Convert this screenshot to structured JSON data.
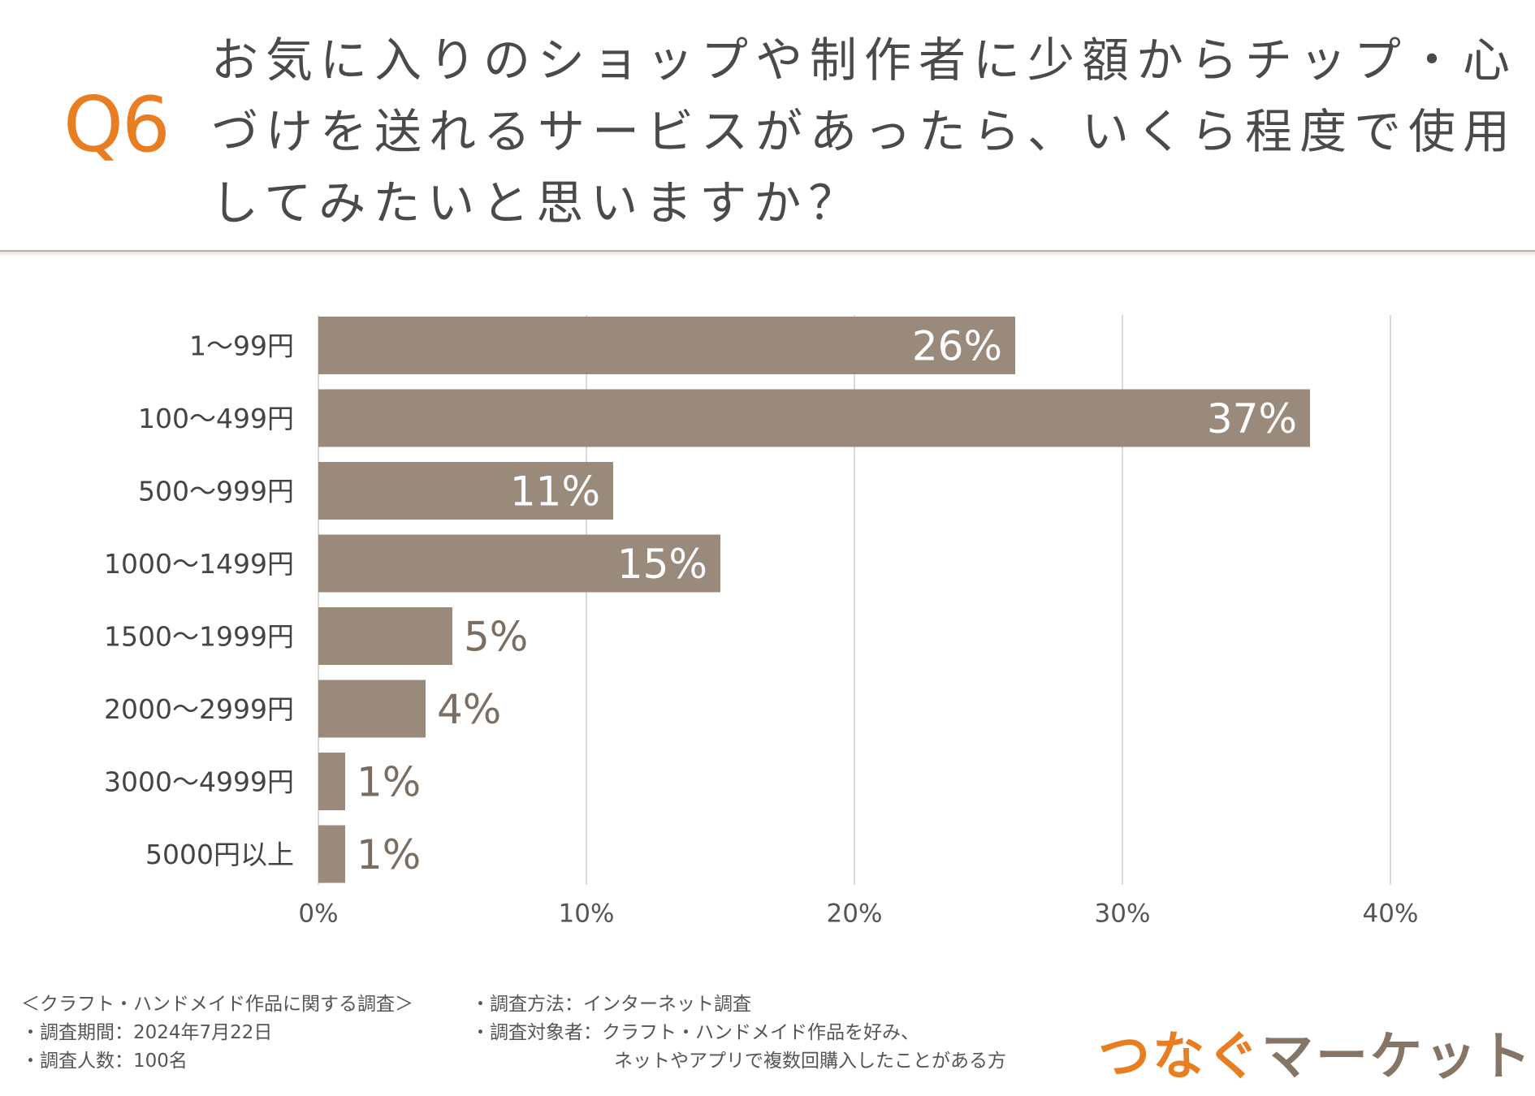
{
  "header": {
    "question_number": "Q6",
    "question_lines": [
      "お気に入りのショップや制作者に少額からチップ・心",
      "づけを送れるサービスがあったら、いくら程度で使用",
      "してみたいと思いますか？"
    ]
  },
  "colors": {
    "accent": "#e87d22",
    "bar": "#9a8a7b",
    "value_outside": "#7b6d61",
    "grid": "#d9d9d9"
  },
  "chart_data": {
    "type": "bar",
    "orientation": "horizontal",
    "categories": [
      "1～99円",
      "100～499円",
      "500～999円",
      "1000～1499円",
      "1500～1999円",
      "2000～2999円",
      "3000～4999円",
      "5000円以上"
    ],
    "values": [
      26,
      37,
      11,
      15,
      5,
      4,
      1,
      1
    ],
    "value_labels": [
      "26%",
      "37%",
      "11%",
      "15%",
      "5%",
      "4%",
      "1%",
      "1%"
    ],
    "xlim": [
      0,
      40
    ],
    "xticks": [
      0,
      10,
      20,
      30,
      40
    ],
    "xtick_labels": [
      "0%",
      "10%",
      "20%",
      "30%",
      "40%"
    ],
    "grid": true,
    "title": "",
    "xlabel": "",
    "ylabel": ""
  },
  "footer": {
    "survey_notes_left": [
      "＜クラフト・ハンドメイド作品に関する調査＞",
      "・調査期間：2024年7月22日",
      "・調査人数：100名"
    ],
    "survey_method": "・調査方法：インターネット調査",
    "survey_target": "・調査対象者：クラフト・ハンドメイド作品を好み、",
    "survey_target_cont": "ネットやアプリで複数回購入したことがある方",
    "logo_part1": "つなぐ",
    "logo_part2": "マーケット"
  }
}
